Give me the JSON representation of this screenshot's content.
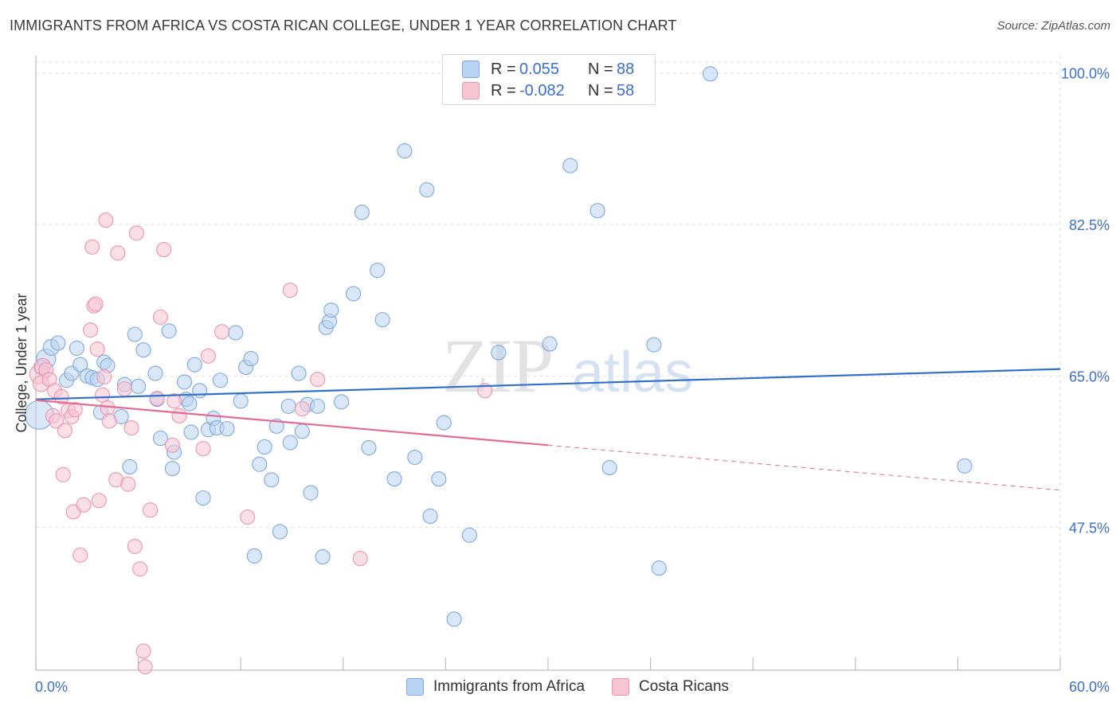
{
  "header": {
    "title": "IMMIGRANTS FROM AFRICA VS COSTA RICAN COLLEGE, UNDER 1 YEAR CORRELATION CHART",
    "source": "Source: ZipAtlas.com"
  },
  "watermark": {
    "zip": "ZIP",
    "atlas": "atlas"
  },
  "colors": {
    "blue_fill": "#b9d3f3",
    "blue_stroke": "#7ea8de",
    "blue_line": "#2f6fd0",
    "pink_fill": "#f7c4d3",
    "pink_stroke": "#ea94b0",
    "pink_line": "#e56a94",
    "tick_label": "#3b6fcf",
    "grid": "#dddddd"
  },
  "legend_top": [
    {
      "r_label": "R =",
      "r_value": "0.055",
      "n_label": "N =",
      "n_value": "88"
    },
    {
      "r_label": "R =",
      "r_value": "-0.082",
      "n_label": "N =",
      "n_value": "58"
    }
  ],
  "legend_bottom": [
    "Immigrants from Africa",
    "Costa Ricans"
  ],
  "chart_data": {
    "type": "scatter",
    "title": "IMMIGRANTS FROM AFRICA VS COSTA RICAN COLLEGE, UNDER 1 YEAR CORRELATION CHART",
    "xlabel": "",
    "ylabel": "College, Under 1 year",
    "xlim": [
      0,
      60
    ],
    "ylim": [
      31,
      102
    ],
    "x_tick_labels": [
      "0.0%",
      "60.0%"
    ],
    "y_ticks": [
      47.5,
      65.0,
      82.5,
      100.0
    ],
    "y_tick_labels": [
      "47.5%",
      "65.0%",
      "82.5%",
      "100.0%"
    ],
    "grid": true,
    "legend_placement": "top-center",
    "series": [
      {
        "name": "Immigrants from Africa",
        "color": "#b9d3f3",
        "trend": {
          "x": [
            0,
            60
          ],
          "y": [
            62.3,
            65.8
          ],
          "dashed_from": null
        },
        "points": [
          [
            0.2,
            60.5
          ],
          [
            0.3,
            66.0
          ],
          [
            0.6,
            67.0
          ],
          [
            0.9,
            68.3
          ],
          [
            1.3,
            68.8
          ],
          [
            1.8,
            64.5
          ],
          [
            2.1,
            65.3
          ],
          [
            2.4,
            68.2
          ],
          [
            2.6,
            66.3
          ],
          [
            3.0,
            65.0
          ],
          [
            3.3,
            64.8
          ],
          [
            3.6,
            64.6
          ],
          [
            3.8,
            60.8
          ],
          [
            4.0,
            66.6
          ],
          [
            4.2,
            66.2
          ],
          [
            5.0,
            60.3
          ],
          [
            5.2,
            64.0
          ],
          [
            5.5,
            54.5
          ],
          [
            5.8,
            69.8
          ],
          [
            6.0,
            63.8
          ],
          [
            6.3,
            68.0
          ],
          [
            7.0,
            65.3
          ],
          [
            7.1,
            62.3
          ],
          [
            7.3,
            57.8
          ],
          [
            7.8,
            70.2
          ],
          [
            8.0,
            54.3
          ],
          [
            8.1,
            56.2
          ],
          [
            8.7,
            64.3
          ],
          [
            8.8,
            62.3
          ],
          [
            9.0,
            61.8
          ],
          [
            9.1,
            58.5
          ],
          [
            9.3,
            66.3
          ],
          [
            9.6,
            63.3
          ],
          [
            9.8,
            50.9
          ],
          [
            10.1,
            58.8
          ],
          [
            10.4,
            60.1
          ],
          [
            10.6,
            59.0
          ],
          [
            10.8,
            64.5
          ],
          [
            11.2,
            58.9
          ],
          [
            11.7,
            70.0
          ],
          [
            12.0,
            62.1
          ],
          [
            12.3,
            66.0
          ],
          [
            12.6,
            67.0
          ],
          [
            12.8,
            44.2
          ],
          [
            13.1,
            54.8
          ],
          [
            13.4,
            56.8
          ],
          [
            13.8,
            53.0
          ],
          [
            14.1,
            59.2
          ],
          [
            14.3,
            47.0
          ],
          [
            14.8,
            61.5
          ],
          [
            14.9,
            57.3
          ],
          [
            15.4,
            65.3
          ],
          [
            15.6,
            58.6
          ],
          [
            15.9,
            61.7
          ],
          [
            16.1,
            51.5
          ],
          [
            16.5,
            61.5
          ],
          [
            16.8,
            44.1
          ],
          [
            17.0,
            70.6
          ],
          [
            17.2,
            71.3
          ],
          [
            17.3,
            72.6
          ],
          [
            17.9,
            62.0
          ],
          [
            18.6,
            74.5
          ],
          [
            19.1,
            83.9
          ],
          [
            19.5,
            56.7
          ],
          [
            20.0,
            77.2
          ],
          [
            20.3,
            71.5
          ],
          [
            21.0,
            53.1
          ],
          [
            21.6,
            91.0
          ],
          [
            22.2,
            55.6
          ],
          [
            22.9,
            86.5
          ],
          [
            23.1,
            48.8
          ],
          [
            23.6,
            53.1
          ],
          [
            23.9,
            59.6
          ],
          [
            24.5,
            36.9
          ],
          [
            25.4,
            46.6
          ],
          [
            27.1,
            67.7
          ],
          [
            30.1,
            68.7
          ],
          [
            31.3,
            89.3
          ],
          [
            32.9,
            84.1
          ],
          [
            33.6,
            54.4
          ],
          [
            36.2,
            68.6
          ],
          [
            36.5,
            42.8
          ],
          [
            39.5,
            99.9
          ],
          [
            54.4,
            54.6
          ]
        ],
        "radius": [
          18,
          9,
          12,
          10,
          9,
          9,
          9,
          9,
          9,
          9,
          9,
          9,
          9,
          9,
          9,
          9,
          9,
          9,
          9,
          9,
          9,
          9,
          9,
          9,
          9,
          9,
          9,
          9,
          9,
          9,
          9,
          9,
          9,
          9,
          9,
          9,
          9,
          9,
          9,
          9,
          9,
          9,
          9,
          9,
          9,
          9,
          9,
          9,
          9,
          9,
          9,
          9,
          9,
          9,
          9,
          9,
          9,
          9,
          9,
          9,
          9,
          9,
          9,
          9,
          9,
          9,
          9,
          9,
          9,
          9,
          9,
          9,
          9,
          9,
          9,
          9,
          9,
          9,
          9,
          9,
          9,
          9,
          9,
          9
        ]
      },
      {
        "name": "Costa Ricans",
        "color": "#f7c4d3",
        "trend": {
          "x": [
            0,
            60
          ],
          "y": [
            62.2,
            51.8
          ],
          "dashed_from": 30
        },
        "points": [
          [
            0.2,
            65.2
          ],
          [
            0.3,
            64.1
          ],
          [
            0.4,
            66.1
          ],
          [
            0.6,
            65.7
          ],
          [
            0.8,
            64.6
          ],
          [
            1.0,
            60.4
          ],
          [
            1.1,
            63.3
          ],
          [
            1.2,
            59.8
          ],
          [
            1.5,
            62.6
          ],
          [
            1.6,
            53.6
          ],
          [
            1.7,
            58.7
          ],
          [
            1.9,
            61.0
          ],
          [
            2.1,
            60.3
          ],
          [
            2.2,
            49.3
          ],
          [
            2.3,
            61.1
          ],
          [
            2.6,
            44.3
          ],
          [
            2.8,
            50.1
          ],
          [
            3.2,
            70.3
          ],
          [
            3.3,
            79.9
          ],
          [
            3.4,
            73.1
          ],
          [
            3.5,
            73.3
          ],
          [
            3.6,
            68.1
          ],
          [
            3.7,
            50.6
          ],
          [
            3.9,
            62.8
          ],
          [
            4.0,
            64.9
          ],
          [
            4.1,
            83.0
          ],
          [
            4.2,
            61.3
          ],
          [
            4.3,
            59.8
          ],
          [
            4.7,
            53.0
          ],
          [
            4.8,
            79.2
          ],
          [
            5.2,
            63.5
          ],
          [
            5.4,
            52.5
          ],
          [
            5.6,
            59.0
          ],
          [
            5.8,
            45.3
          ],
          [
            5.9,
            81.5
          ],
          [
            6.1,
            42.7
          ],
          [
            6.3,
            33.2
          ],
          [
            6.4,
            31.4
          ],
          [
            6.7,
            49.5
          ],
          [
            7.1,
            62.4
          ],
          [
            7.3,
            71.8
          ],
          [
            7.5,
            79.6
          ],
          [
            8.0,
            57.0
          ],
          [
            8.1,
            62.1
          ],
          [
            8.4,
            60.4
          ],
          [
            9.8,
            56.6
          ],
          [
            10.1,
            67.3
          ],
          [
            10.9,
            70.1
          ],
          [
            12.4,
            48.7
          ],
          [
            14.9,
            74.9
          ],
          [
            15.6,
            61.2
          ],
          [
            16.5,
            64.6
          ],
          [
            19.0,
            43.9
          ],
          [
            26.3,
            63.3
          ]
        ],
        "radius": [
          12,
          10,
          10,
          9,
          9,
          9,
          9,
          9,
          9,
          9,
          9,
          9,
          9,
          9,
          9,
          9,
          9,
          9,
          9,
          9,
          9,
          9,
          9,
          9,
          9,
          9,
          9,
          9,
          9,
          9,
          9,
          9,
          9,
          9,
          9,
          9,
          9,
          9,
          9,
          9,
          9,
          9,
          9,
          9,
          9,
          9,
          9,
          9,
          9,
          9,
          9,
          9,
          9,
          9
        ]
      }
    ]
  }
}
